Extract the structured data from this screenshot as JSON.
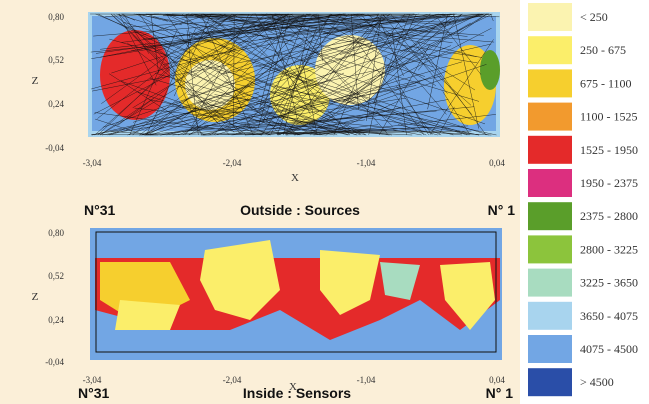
{
  "top_panel": {
    "z_label": "Z",
    "x_label": "X",
    "z_ticks": [
      "0,80",
      "0,52",
      "0,24",
      "-0,04"
    ],
    "x_ticks": [
      "-3,04",
      "-2,04",
      "-1,04",
      "0,04"
    ],
    "left_label": "N°31",
    "caption": "Outside : Sources",
    "right_label": "N° 1"
  },
  "bottom_panel": {
    "z_label": "Z",
    "x_label": "X",
    "z_ticks": [
      "0,80",
      "0,52",
      "0,24",
      "-0,04"
    ],
    "x_ticks": [
      "-3,04",
      "-2,04",
      "-1,04",
      "0,04"
    ],
    "left_label": "N°31",
    "caption": "Inside : Sensors",
    "right_label": "N° 1"
  },
  "legend": {
    "items": [
      {
        "label": "< 250",
        "color": "#fbf3b0"
      },
      {
        "label": "250 - 675",
        "color": "#fbee6a"
      },
      {
        "label": "675 - 1100",
        "color": "#f6cf2e"
      },
      {
        "label": "1100 - 1525",
        "color": "#f29a2e"
      },
      {
        "label": "1525 - 1950",
        "color": "#e42a2a"
      },
      {
        "label": "1950 - 2375",
        "color": "#dc2f7f"
      },
      {
        "label": "2375 - 2800",
        "color": "#5a9e2a"
      },
      {
        "label": "2800 - 3225",
        "color": "#8cc43c"
      },
      {
        "label": "3225 - 3650",
        "color": "#a8dcc0"
      },
      {
        "label": "3650 - 4075",
        "color": "#a8d4ee"
      },
      {
        "label": "4075 - 4500",
        "color": "#72a6e4"
      },
      {
        "label": "> 4500",
        "color": "#2a4ea8"
      }
    ]
  }
}
